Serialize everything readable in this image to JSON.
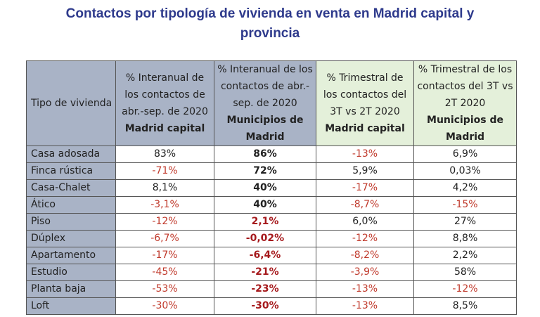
{
  "title": {
    "line1": "Contactos por tipología de vivienda en venta en Madrid capital y",
    "line2": "provincia"
  },
  "colors": {
    "title": "#2e3a8c",
    "header_blue": "#a9b3c6",
    "header_green": "#e4f0da",
    "negative": "#c0392b"
  },
  "table": {
    "headers": [
      {
        "normal": "Tipo de vivienda",
        "bold": ""
      },
      {
        "normal": "% Interanual de los contactos de abr.-sep. de 2020 ",
        "bold": "Madrid capital"
      },
      {
        "normal": "% Interanual de los contactos de abr.-sep. de 2020 ",
        "bold": "Municipios de Madrid"
      },
      {
        "normal": "% Trimestral de los contactos del 3T vs 2T 2020 ",
        "bold": "Madrid capital"
      },
      {
        "normal": "% Trimestral de los contactos del 3T vs 2T 2020 ",
        "bold": "Municipios de Madrid"
      }
    ],
    "rows": [
      {
        "tipo": "Casa adosada",
        "inter_capital": "83%",
        "inter_municipios": "86%",
        "trim_capital": "-13%",
        "trim_municipios": "6,9%"
      },
      {
        "tipo": "Finca rústica",
        "inter_capital": "-71%",
        "inter_municipios": "72%",
        "trim_capital": "5,9%",
        "trim_municipios": "0,03%"
      },
      {
        "tipo": "Casa-Chalet",
        "inter_capital": "8,1%",
        "inter_municipios": "40%",
        "trim_capital": "-17%",
        "trim_municipios": "4,2%"
      },
      {
        "tipo": "Ático",
        "inter_capital": "-3,1%",
        "inter_municipios": "40%",
        "trim_capital": "-8,7%",
        "trim_municipios": "-15%"
      },
      {
        "tipo": "Piso",
        "inter_capital": "-12%",
        "inter_municipios": "2,1%",
        "trim_capital": "6,0%",
        "trim_municipios": "27%"
      },
      {
        "tipo": "Dúplex",
        "inter_capital": "-6,7%",
        "inter_municipios": "-0,02%",
        "trim_capital": "-12%",
        "trim_municipios": "8,8%"
      },
      {
        "tipo": "Apartamento",
        "inter_capital": "-17%",
        "inter_municipios": "-6,4%",
        "trim_capital": "-8,2%",
        "trim_municipios": "2,2%"
      },
      {
        "tipo": "Estudio",
        "inter_capital": "-45%",
        "inter_municipios": "-21%",
        "trim_capital": "-3,9%",
        "trim_municipios": "58%"
      },
      {
        "tipo": "Planta baja",
        "inter_capital": "-53%",
        "inter_municipios": "-23%",
        "trim_capital": "-13%",
        "trim_municipios": "-12%"
      },
      {
        "tipo": "Loft",
        "inter_capital": "-30%",
        "inter_municipios": "-30%",
        "trim_capital": "-13%",
        "trim_municipios": "8,5%"
      }
    ]
  }
}
